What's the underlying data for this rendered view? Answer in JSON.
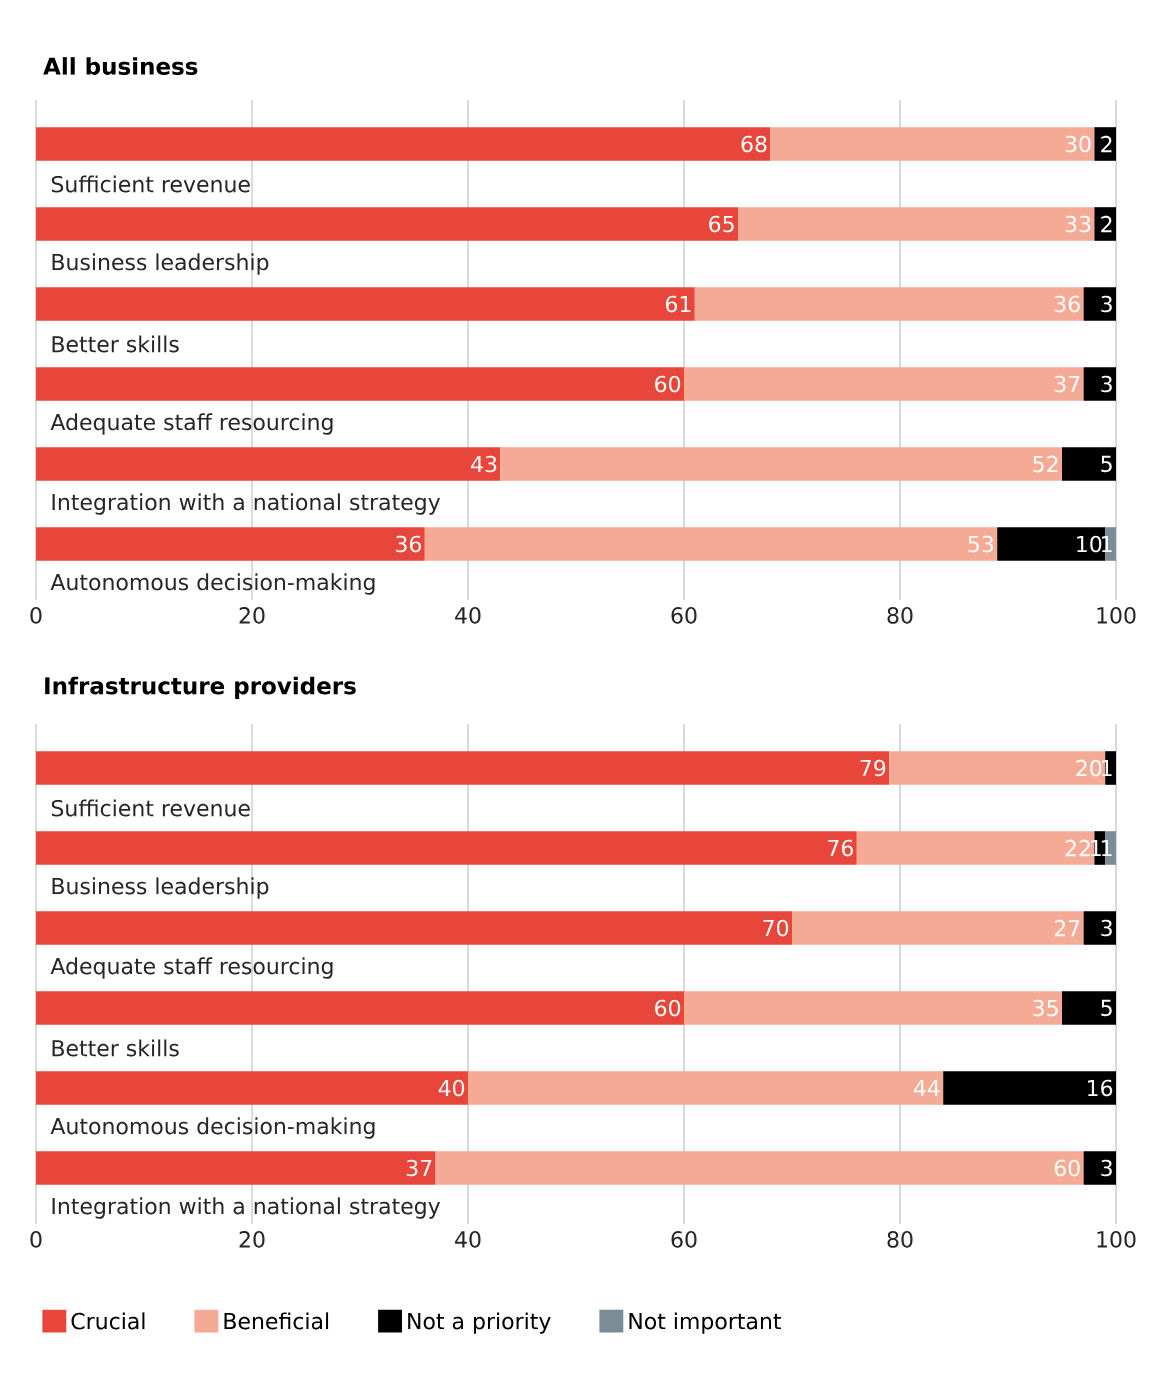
{
  "chart_data": [
    {
      "type": "bar",
      "orientation": "horizontal",
      "stacked": true,
      "title": "All business",
      "categories": [
        "Sufficient revenue",
        "Business leadership",
        "Better skills",
        "Adequate staff resourcing",
        "Integration with a national strategy",
        "Autonomous decision-making"
      ],
      "series": [
        {
          "color": "#e8463b",
          "values": [
            68,
            65,
            61,
            60,
            43,
            36
          ]
        },
        {
          "color": "#f5aa96",
          "values": [
            30,
            33,
            36,
            37,
            52,
            53
          ]
        },
        {
          "color": "#000000",
          "values": [
            2,
            2,
            3,
            3,
            5,
            10
          ]
        },
        {
          "color": "#7a8c96",
          "values": [
            null,
            null,
            null,
            null,
            null,
            1
          ]
        }
      ],
      "xlim": [
        0,
        100
      ],
      "xticks": [
        0,
        20,
        40,
        60,
        80,
        100
      ],
      "grid": "x",
      "data_labels": true
    },
    {
      "type": "bar",
      "orientation": "horizontal",
      "stacked": true,
      "title": "Infrastructure providers",
      "categories": [
        "Sufficient revenue",
        "Business leadership",
        "Adequate staff resourcing",
        "Better skills",
        "Autonomous decision-making",
        "Integration with a national strategy"
      ],
      "series": [
        {
          "name": "Crucial",
          "color": "#e8463b",
          "values": [
            79,
            76,
            70,
            60,
            40,
            37
          ]
        },
        {
          "name": "Beneficial",
          "color": "#f5aa96",
          "values": [
            20,
            22,
            27,
            35,
            44,
            60
          ]
        },
        {
          "name": "Not a priority",
          "color": "#000000",
          "values": [
            1,
            1,
            3,
            5,
            16,
            3
          ]
        },
        {
          "name": "Not important",
          "color": "#7a8c96",
          "values": [
            null,
            1,
            null,
            null,
            null,
            null
          ]
        }
      ],
      "xlim": [
        0,
        100
      ],
      "xticks": [
        0,
        20,
        40,
        60,
        80,
        100
      ],
      "grid": "x",
      "data_labels": true,
      "legend": "bottom"
    }
  ]
}
